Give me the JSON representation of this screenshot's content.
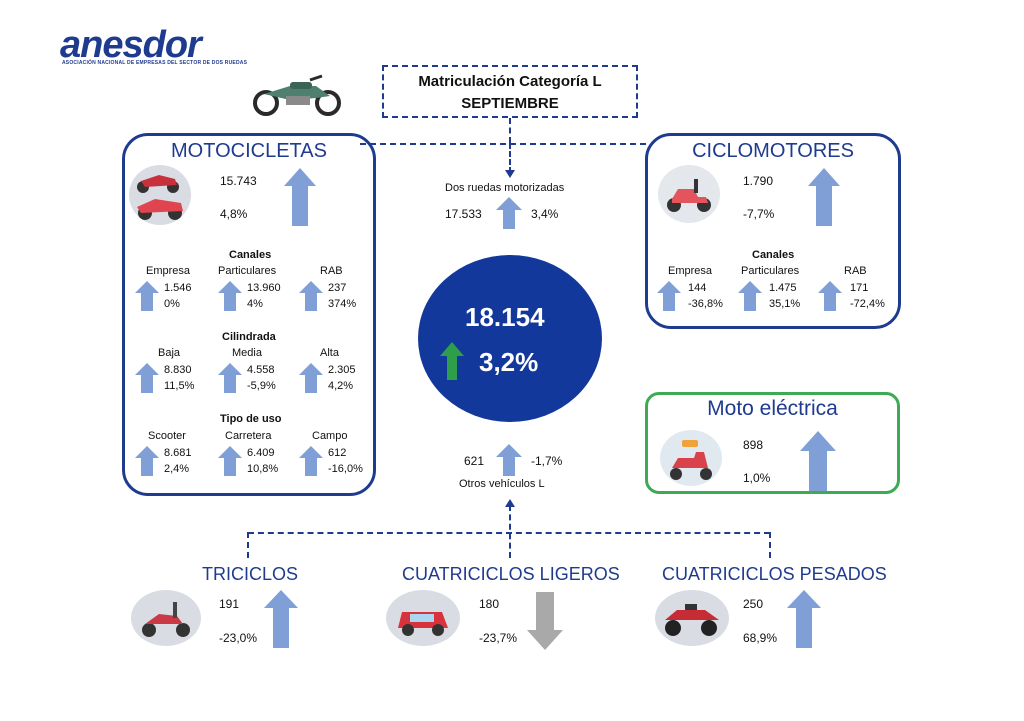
{
  "logo": {
    "name": "anesdor",
    "subtitle": "ASOCIACIÓN NACIONAL DE EMPRESAS DEL SECTOR DE DOS RUEDAS"
  },
  "title": {
    "line1": "Matriculación Categoría L",
    "line2": "SEPTIEMBRE"
  },
  "colors": {
    "brand": "#1f3b8f",
    "arrow_up": "#7f9fd6",
    "arrow_down": "#a9a9a9",
    "arrow_green": "#2e9e4a",
    "electric_border": "#3daa55",
    "center_circle": "#12389b"
  },
  "motocicletas": {
    "title": "MOTOCICLETAS",
    "value": "15.743",
    "change": "4,8%",
    "canales": {
      "heading": "Canales",
      "items": [
        {
          "label": "Empresa",
          "value": "1.546",
          "change": "0%"
        },
        {
          "label": "Particulares",
          "value": "13.960",
          "change": "4%"
        },
        {
          "label": "RAB",
          "value": "237",
          "change": "374%"
        }
      ]
    },
    "cilindrada": {
      "heading": "Cilindrada",
      "items": [
        {
          "label": "Baja",
          "value": "8.830",
          "change": "11,5%"
        },
        {
          "label": "Media",
          "value": "4.558",
          "change": "-5,9%"
        },
        {
          "label": "Alta",
          "value": "2.305",
          "change": "4,2%"
        }
      ]
    },
    "tipo_uso": {
      "heading": "Tipo de uso",
      "items": [
        {
          "label": "Scooter",
          "value": "8.681",
          "change": "2,4%"
        },
        {
          "label": "Carretera",
          "value": "6.409",
          "change": "10,8%"
        },
        {
          "label": "Campo",
          "value": "612",
          "change": "-16,0%"
        }
      ]
    }
  },
  "dos_ruedas": {
    "label": "Dos ruedas motorizadas",
    "value": "17.533",
    "change": "3,4%"
  },
  "total": {
    "value": "18.154",
    "change": "3,2%"
  },
  "otros": {
    "label": "Otros vehículos L",
    "value": "621",
    "change": "-1,7%"
  },
  "ciclomotores": {
    "title": "CICLOMOTORES",
    "value": "1.790",
    "change": "-7,7%",
    "canales": {
      "heading": "Canales",
      "items": [
        {
          "label": "Empresa",
          "value": "144",
          "change": "-36,8%"
        },
        {
          "label": "Particulares",
          "value": "1.475",
          "change": "35,1%"
        },
        {
          "label": "RAB",
          "value": "171",
          "change": "-72,4%"
        }
      ]
    }
  },
  "moto_electrica": {
    "title": "Moto eléctrica",
    "value": "898",
    "change": "1,0%"
  },
  "triciclos": {
    "title": "TRICICLOS",
    "value": "191",
    "change": "-23,0%"
  },
  "cuatriciclos_ligeros": {
    "title": "CUATRICICLOS LIGEROS",
    "value": "180",
    "change": "-23,7%"
  },
  "cuatriciclos_pesados": {
    "title": "CUATRICICLOS PESADOS",
    "value": "250",
    "change": "68,9%"
  }
}
